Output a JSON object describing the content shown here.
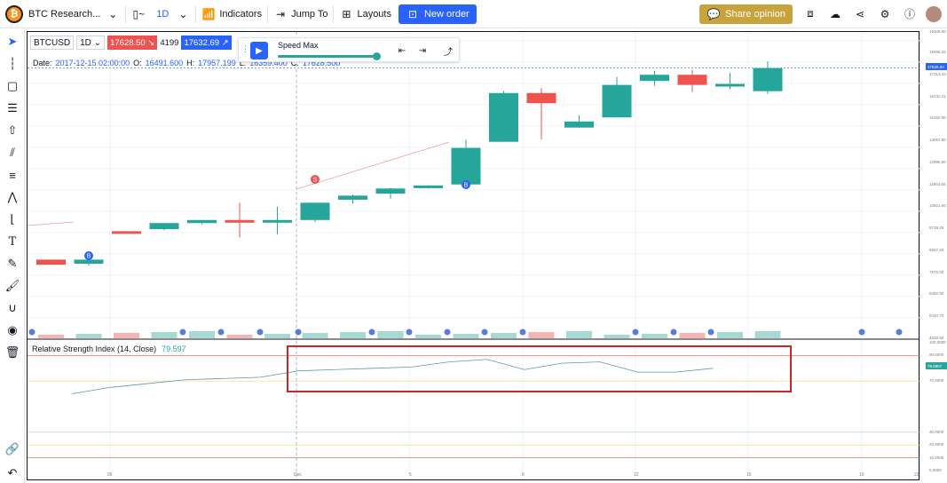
{
  "topbar": {
    "title": "BTC Research...",
    "interval": "1D",
    "indicators": "Indicators",
    "jump_to": "Jump To",
    "layouts": "Layouts",
    "new_order": "New order",
    "share": "Share opinion"
  },
  "legend": {
    "symbol": "BTCUSD",
    "interval": "1D",
    "sell_price": "17628.50",
    "spread": "4199",
    "buy_price": "17632.69"
  },
  "replay": {
    "speed_label": "Speed Max",
    "speed_level": 1.0
  },
  "ohlc": {
    "date_label": "Date:",
    "date": "2017-12-15 02:00:00",
    "open_label": "O:",
    "open": "16491.600",
    "high_label": "H:",
    "high": "17957.199",
    "low_label": "L:",
    "low": "16359.400",
    "close_label": "C:",
    "close": "17628.500"
  },
  "rsi": {
    "title": "Relative Strength Index (14, Close)",
    "value": "79.597",
    "last_label": "79.5967"
  },
  "price_scale": [
    "19406.60",
    "18396.32",
    "17313.43",
    "16232.21",
    "15150.90",
    "14067.80",
    "12985.60",
    "11903.60",
    "10821.50",
    "9739.29",
    "8657.20",
    "7575.00",
    "6492.90",
    "5410.70",
    "4328.60"
  ],
  "last_price_label": "17628.50",
  "rsi_scale": [
    "100.0000",
    "90.0000",
    "70.0000",
    "30.0000",
    "20.0000",
    "10.0000",
    "0.0000"
  ],
  "x_labels": [
    "26",
    "Dec",
    "5",
    "8",
    "12",
    "15",
    "19",
    "22"
  ],
  "colors": {
    "up": "#26a69a",
    "down": "#ef5350",
    "accent": "#2962ff",
    "share": "#c8a23a",
    "highlight": "#c62828"
  },
  "markers": [
    "S",
    "B",
    "B"
  ],
  "chart_data": {
    "type": "candlestick",
    "candles": [
      {
        "o": 8200,
        "h": 8200,
        "l": 7950,
        "c": 7950
      },
      {
        "o": 8000,
        "h": 8300,
        "l": 7900,
        "c": 8200
      },
      {
        "o": 9600,
        "h": 9600,
        "l": 9500,
        "c": 9500
      },
      {
        "o": 9700,
        "h": 10000,
        "l": 9650,
        "c": 10000
      },
      {
        "o": 10000,
        "h": 10150,
        "l": 9950,
        "c": 10150
      },
      {
        "o": 10150,
        "h": 11000,
        "l": 9300,
        "c": 10050
      },
      {
        "o": 10050,
        "h": 10800,
        "l": 9450,
        "c": 10150
      },
      {
        "o": 10150,
        "h": 11000,
        "l": 10050,
        "c": 11000
      },
      {
        "o": 11150,
        "h": 11400,
        "l": 10950,
        "c": 11350
      },
      {
        "o": 11450,
        "h": 11750,
        "l": 11200,
        "c": 11700
      },
      {
        "o": 11800,
        "h": 11850,
        "l": 11700,
        "c": 11850
      },
      {
        "o": 11900,
        "h": 14100,
        "l": 11900,
        "c": 13700
      },
      {
        "o": 14000,
        "h": 16500,
        "l": 14000,
        "c": 16400
      },
      {
        "o": 16400,
        "h": 16650,
        "l": 14100,
        "c": 15900
      },
      {
        "o": 14700,
        "h": 15300,
        "l": 14700,
        "c": 15000
      },
      {
        "o": 15200,
        "h": 17200,
        "l": 15200,
        "c": 16800
      },
      {
        "o": 17000,
        "h": 17500,
        "l": 16750,
        "c": 17300
      },
      {
        "o": 17300,
        "h": 17550,
        "l": 16450,
        "c": 16800
      },
      {
        "o": 16800,
        "h": 17400,
        "l": 16600,
        "c": 16850
      },
      {
        "o": 16491.6,
        "h": 17957.2,
        "l": 16359.4,
        "c": 17628.5
      }
    ],
    "rsi": [
      60,
      65,
      68,
      71,
      72,
      73,
      78,
      79,
      80,
      81,
      85,
      87,
      79,
      84,
      85,
      77,
      77,
      80
    ],
    "ylim": [
      4328.6,
      19406.6
    ],
    "rsi_ylim": [
      0,
      100
    ]
  }
}
